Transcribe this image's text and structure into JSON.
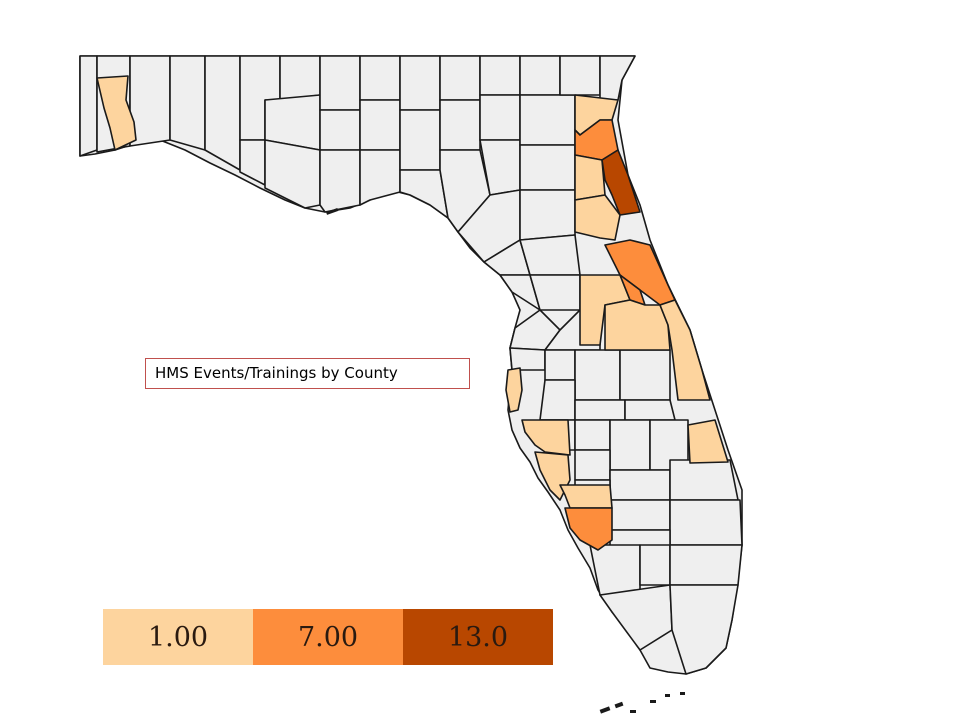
{
  "title": "HMS Events/Trainings by County",
  "legend": [
    {
      "label": "1.00",
      "color": "#fdd49e"
    },
    {
      "label": "7.00",
      "color": "#fd8d3c"
    },
    {
      "label": "13.0",
      "color": "#b84700"
    }
  ],
  "map": {
    "default_fill": "#efefef",
    "stroke": "#1a1a1a",
    "water": "#ffffff"
  }
}
